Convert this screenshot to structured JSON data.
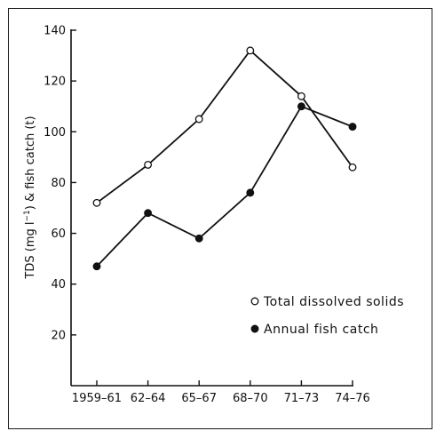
{
  "chart_data": {
    "type": "line",
    "categories": [
      "1959-61",
      "62-64",
      "65-67",
      "68-70",
      "71-73",
      "74-76"
    ],
    "ylabel_parts": [
      "TDS (mg l",
      "−1",
      ") & fish catch (t)"
    ],
    "ylim": [
      0,
      140
    ],
    "yticks": [
      20,
      40,
      60,
      80,
      100,
      120,
      140
    ],
    "series": [
      {
        "name": "Total dissolved solids",
        "marker": "open-circle",
        "values": [
          72,
          87,
          105,
          132,
          114,
          86
        ]
      },
      {
        "name": "Annual fish catch",
        "marker": "filled-circle",
        "values": [
          47,
          68,
          58,
          76,
          110,
          102
        ]
      }
    ],
    "legend_position": "lower-right",
    "grid": false,
    "colors": {
      "ink": "#111111",
      "background": "#ffffff"
    }
  }
}
